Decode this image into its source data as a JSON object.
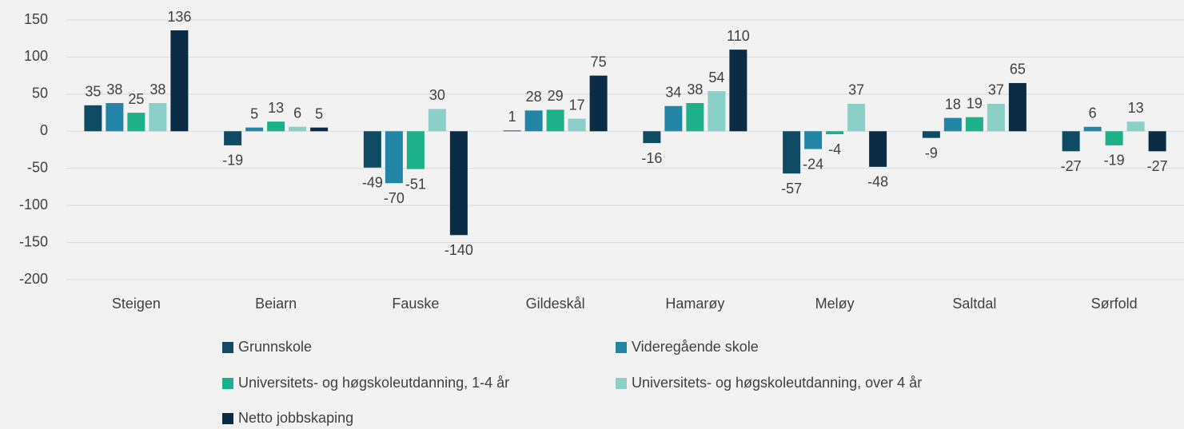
{
  "chart_data": {
    "type": "bar",
    "categories": [
      "Steigen",
      "Beiarn",
      "Fauske",
      "Gildeskål",
      "Hamarøy",
      "Meløy",
      "Saltdal",
      "Sørfold"
    ],
    "series": [
      {
        "name": "Grunnskole",
        "color": "#0f4c63",
        "values": [
          35,
          -19,
          -49,
          1,
          -16,
          -57,
          -9,
          -27
        ]
      },
      {
        "name": "Videregående skole",
        "color": "#2385a6",
        "values": [
          38,
          5,
          -70,
          28,
          34,
          -24,
          18,
          6
        ]
      },
      {
        "name": "Universitets- og høgskoleutdanning, 1-4 år",
        "color": "#1db18a",
        "values": [
          25,
          13,
          -51,
          29,
          38,
          -4,
          19,
          -19
        ]
      },
      {
        "name": "Universitets- og høgskoleutdanning, over 4 år",
        "color": "#8bd0c8",
        "values": [
          38,
          6,
          30,
          17,
          54,
          37,
          37,
          13
        ]
      },
      {
        "name": "Netto jobbskaping",
        "color": "#0b2c44",
        "values": [
          136,
          5,
          -140,
          75,
          110,
          -48,
          65,
          -27
        ]
      }
    ],
    "ylim": [
      -200,
      150
    ],
    "yticks": [
      -200,
      -150,
      -100,
      -50,
      0,
      50,
      100,
      150
    ],
    "grid": true
  }
}
